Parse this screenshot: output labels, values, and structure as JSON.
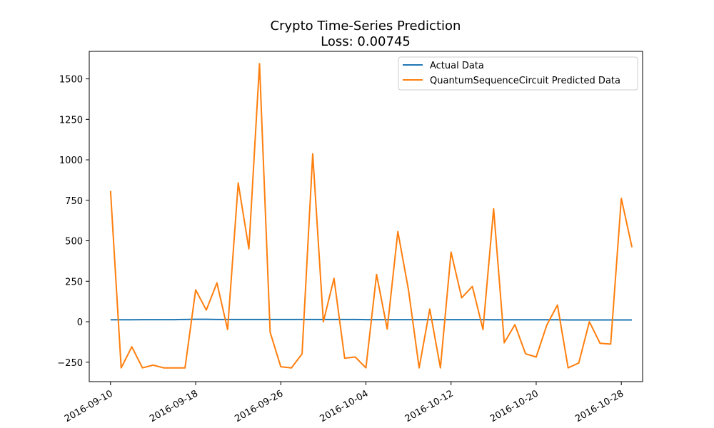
{
  "chart_data": {
    "type": "line",
    "title": "Crypto Time-Series Prediction",
    "subtitle": "Loss: 0.00745",
    "xlabel": "",
    "ylabel": "",
    "xlim": [
      "2016-09-08",
      "2016-10-30"
    ],
    "ylim": [
      -370,
      1670
    ],
    "grid": false,
    "legend_position": "top-right",
    "x_ticks": [
      "2016-09-10",
      "2016-09-18",
      "2016-09-26",
      "2016-10-04",
      "2016-10-12",
      "2016-10-20",
      "2016-10-28"
    ],
    "y_ticks": [
      -250,
      0,
      250,
      500,
      750,
      1000,
      1250,
      1500
    ],
    "x": [
      "2016-09-10",
      "2016-09-11",
      "2016-09-12",
      "2016-09-13",
      "2016-09-14",
      "2016-09-15",
      "2016-09-16",
      "2016-09-17",
      "2016-09-18",
      "2016-09-19",
      "2016-09-20",
      "2016-09-21",
      "2016-09-22",
      "2016-09-23",
      "2016-09-24",
      "2016-09-25",
      "2016-09-26",
      "2016-09-27",
      "2016-09-28",
      "2016-09-29",
      "2016-09-30",
      "2016-10-01",
      "2016-10-02",
      "2016-10-03",
      "2016-10-04",
      "2016-10-05",
      "2016-10-06",
      "2016-10-07",
      "2016-10-08",
      "2016-10-09",
      "2016-10-10",
      "2016-10-11",
      "2016-10-12",
      "2016-10-13",
      "2016-10-14",
      "2016-10-15",
      "2016-10-16",
      "2016-10-17",
      "2016-10-18",
      "2016-10-19",
      "2016-10-20",
      "2016-10-21",
      "2016-10-22",
      "2016-10-23",
      "2016-10-24",
      "2016-10-25",
      "2016-10-26",
      "2016-10-27",
      "2016-10-28",
      "2016-10-29"
    ],
    "series": [
      {
        "name": "Actual Data",
        "color": "#1f77b4",
        "values": [
          12,
          12,
          12,
          13,
          13,
          13,
          13,
          14,
          15,
          15,
          14,
          14,
          14,
          14,
          14,
          14,
          14,
          14,
          14,
          14,
          14,
          14,
          14,
          14,
          13,
          13,
          13,
          13,
          13,
          13,
          13,
          13,
          13,
          13,
          13,
          13,
          12,
          12,
          12,
          12,
          12,
          12,
          12,
          11,
          11,
          11,
          11,
          11,
          11,
          11
        ]
      },
      {
        "name": "QuantumSequenceCircuit Predicted Data",
        "color": "#ff7f0e",
        "values": [
          808,
          -285,
          -155,
          -285,
          -268,
          -285,
          -285,
          -285,
          197,
          72,
          240,
          -48,
          857,
          450,
          1594,
          -65,
          -278,
          -285,
          -198,
          1037,
          0,
          268,
          -225,
          -218,
          -285,
          292,
          -45,
          557,
          196,
          -285,
          78,
          -285,
          430,
          148,
          218,
          -48,
          698,
          -130,
          -18,
          -198,
          -218,
          -20,
          103,
          -285,
          -255,
          0,
          -133,
          -138,
          762,
          460
        ]
      }
    ]
  }
}
